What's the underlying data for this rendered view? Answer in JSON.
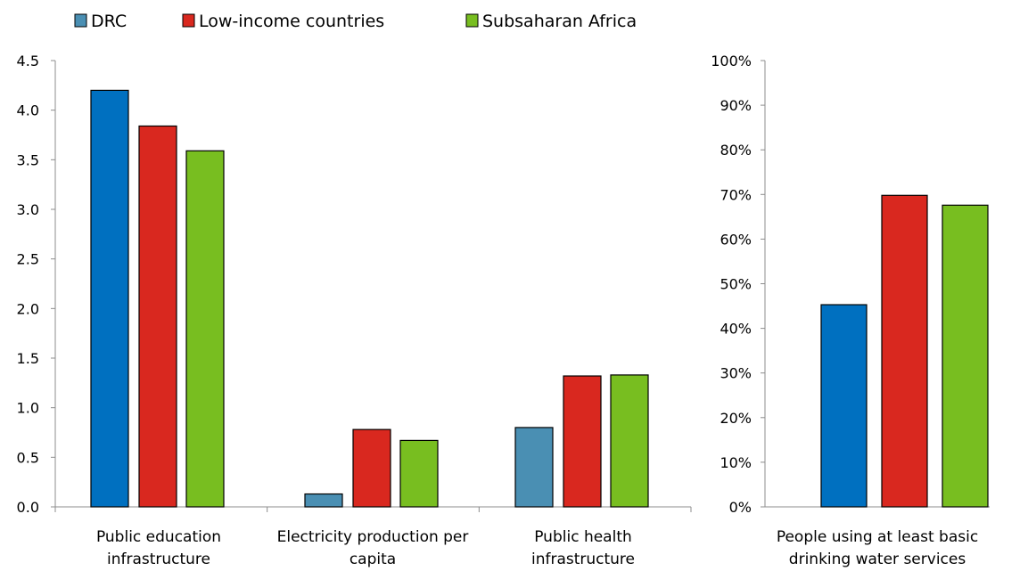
{
  "legend": {
    "items": [
      {
        "label": "DRC",
        "color": "#4a8fb3"
      },
      {
        "label": "Low-income countries",
        "color": "#d9281f"
      },
      {
        "label": "Subsaharan Africa",
        "color": "#78be20"
      }
    ]
  },
  "chart_data": [
    {
      "type": "bar",
      "title": "",
      "xlabel": "",
      "ylabel": "",
      "ylim": [
        0,
        4.5
      ],
      "yticks": [
        "0.0",
        "0.5",
        "1.0",
        "1.5",
        "2.0",
        "2.5",
        "3.0",
        "3.5",
        "4.0",
        "4.5"
      ],
      "grid": false,
      "legend_position": "top-left",
      "categories": [
        [
          "Public education",
          "infrastructure"
        ],
        [
          "Electricity production per",
          "capita"
        ],
        [
          "Public health",
          "infrastructure"
        ]
      ],
      "series": [
        {
          "name": "DRC",
          "values": [
            4.2,
            0.13,
            0.8
          ],
          "colors": [
            "#0070c0",
            "#4a8fb3",
            "#4a8fb3"
          ]
        },
        {
          "name": "Low-income countries",
          "values": [
            3.84,
            0.78,
            1.32
          ],
          "colors": [
            "#d9281f",
            "#d9281f",
            "#d9281f"
          ]
        },
        {
          "name": "Subsaharan Africa",
          "values": [
            3.59,
            0.67,
            1.33
          ],
          "colors": [
            "#78be20",
            "#78be20",
            "#78be20"
          ]
        }
      ]
    },
    {
      "type": "bar",
      "title": "",
      "xlabel": "",
      "ylabel": "",
      "ylim": [
        0,
        100
      ],
      "yticks": [
        "0%",
        "10%",
        "20%",
        "30%",
        "40%",
        "50%",
        "60%",
        "70%",
        "80%",
        "90%",
        "100%"
      ],
      "grid": false,
      "categories": [
        [
          "People using at least basic",
          "drinking water services"
        ]
      ],
      "series": [
        {
          "name": "DRC",
          "values": [
            45.3
          ],
          "colors": [
            "#0070c0"
          ]
        },
        {
          "name": "Low-income countries",
          "values": [
            69.8
          ],
          "colors": [
            "#d9281f"
          ]
        },
        {
          "name": "Subsaharan Africa",
          "values": [
            67.6
          ],
          "colors": [
            "#78be20"
          ]
        }
      ]
    }
  ]
}
